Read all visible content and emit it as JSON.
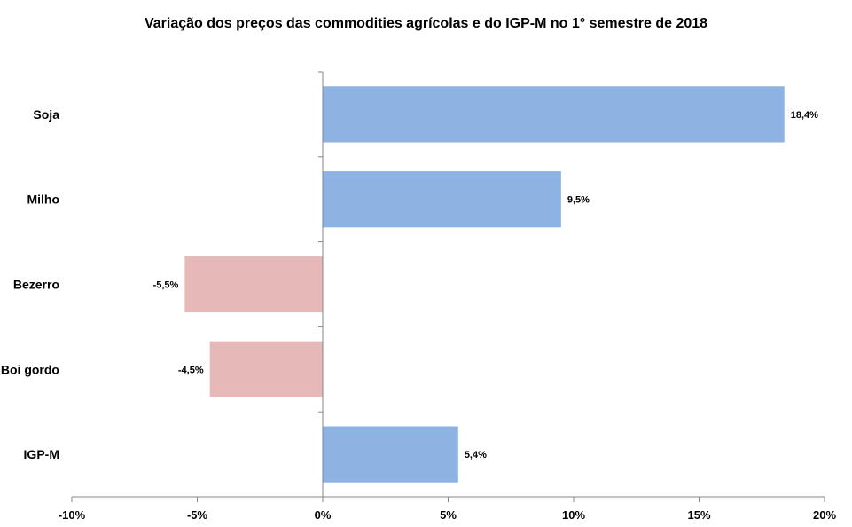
{
  "chart_data": {
    "type": "bar",
    "orientation": "horizontal",
    "title": "Variação dos preços das commodities agrícolas e do IGP-M no 1° semestre de 2018",
    "xlabel": "",
    "ylabel": "",
    "categories": [
      "Soja",
      "Milho",
      "Bezerro",
      "Boi gordo",
      "IGP-M"
    ],
    "values": [
      18.4,
      9.5,
      -5.5,
      -4.5,
      5.4
    ],
    "value_labels": [
      "18,4%",
      "9,5%",
      "-5,5%",
      "-4,5%",
      "5,4%"
    ],
    "xlim": [
      -10,
      20
    ],
    "xticks": [
      -10,
      -5,
      0,
      5,
      10,
      15,
      20
    ],
    "xtick_labels": [
      "-10%",
      "-5%",
      "0%",
      "5%",
      "10%",
      "15%",
      "20%"
    ],
    "grid": false,
    "legend": "none",
    "colors": {
      "positive": "#8EB3E3",
      "negative": "#E6B9B8",
      "axis": "#868686"
    }
  }
}
